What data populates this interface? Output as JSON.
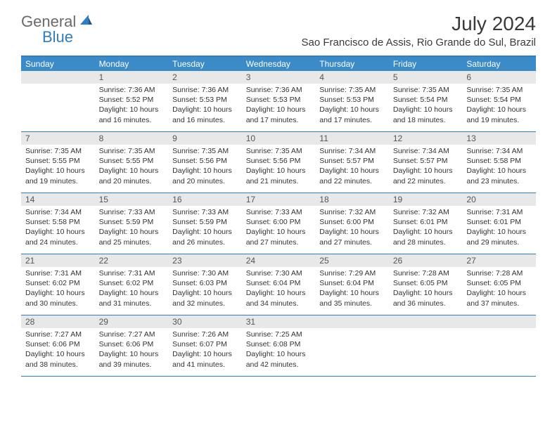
{
  "logo": {
    "text1": "General",
    "text2": "Blue"
  },
  "header": {
    "title": "July 2024",
    "location": "Sao Francisco de Assis, Rio Grande do Sul, Brazil"
  },
  "colors": {
    "header_bar": "#3b8bc9",
    "border": "#2f7ec0",
    "daynum_bg": "#e8e8e8",
    "logo_gray": "#6a6a6a",
    "logo_blue": "#2f7ec0"
  },
  "weekdays": [
    "Sunday",
    "Monday",
    "Tuesday",
    "Wednesday",
    "Thursday",
    "Friday",
    "Saturday"
  ],
  "weeks": [
    [
      {
        "n": "",
        "sr": "",
        "ss": "",
        "dl": ""
      },
      {
        "n": "1",
        "sr": "Sunrise: 7:36 AM",
        "ss": "Sunset: 5:52 PM",
        "dl": "Daylight: 10 hours and 16 minutes."
      },
      {
        "n": "2",
        "sr": "Sunrise: 7:36 AM",
        "ss": "Sunset: 5:53 PM",
        "dl": "Daylight: 10 hours and 16 minutes."
      },
      {
        "n": "3",
        "sr": "Sunrise: 7:36 AM",
        "ss": "Sunset: 5:53 PM",
        "dl": "Daylight: 10 hours and 17 minutes."
      },
      {
        "n": "4",
        "sr": "Sunrise: 7:35 AM",
        "ss": "Sunset: 5:53 PM",
        "dl": "Daylight: 10 hours and 17 minutes."
      },
      {
        "n": "5",
        "sr": "Sunrise: 7:35 AM",
        "ss": "Sunset: 5:54 PM",
        "dl": "Daylight: 10 hours and 18 minutes."
      },
      {
        "n": "6",
        "sr": "Sunrise: 7:35 AM",
        "ss": "Sunset: 5:54 PM",
        "dl": "Daylight: 10 hours and 19 minutes."
      }
    ],
    [
      {
        "n": "7",
        "sr": "Sunrise: 7:35 AM",
        "ss": "Sunset: 5:55 PM",
        "dl": "Daylight: 10 hours and 19 minutes."
      },
      {
        "n": "8",
        "sr": "Sunrise: 7:35 AM",
        "ss": "Sunset: 5:55 PM",
        "dl": "Daylight: 10 hours and 20 minutes."
      },
      {
        "n": "9",
        "sr": "Sunrise: 7:35 AM",
        "ss": "Sunset: 5:56 PM",
        "dl": "Daylight: 10 hours and 20 minutes."
      },
      {
        "n": "10",
        "sr": "Sunrise: 7:35 AM",
        "ss": "Sunset: 5:56 PM",
        "dl": "Daylight: 10 hours and 21 minutes."
      },
      {
        "n": "11",
        "sr": "Sunrise: 7:34 AM",
        "ss": "Sunset: 5:57 PM",
        "dl": "Daylight: 10 hours and 22 minutes."
      },
      {
        "n": "12",
        "sr": "Sunrise: 7:34 AM",
        "ss": "Sunset: 5:57 PM",
        "dl": "Daylight: 10 hours and 22 minutes."
      },
      {
        "n": "13",
        "sr": "Sunrise: 7:34 AM",
        "ss": "Sunset: 5:58 PM",
        "dl": "Daylight: 10 hours and 23 minutes."
      }
    ],
    [
      {
        "n": "14",
        "sr": "Sunrise: 7:34 AM",
        "ss": "Sunset: 5:58 PM",
        "dl": "Daylight: 10 hours and 24 minutes."
      },
      {
        "n": "15",
        "sr": "Sunrise: 7:33 AM",
        "ss": "Sunset: 5:59 PM",
        "dl": "Daylight: 10 hours and 25 minutes."
      },
      {
        "n": "16",
        "sr": "Sunrise: 7:33 AM",
        "ss": "Sunset: 5:59 PM",
        "dl": "Daylight: 10 hours and 26 minutes."
      },
      {
        "n": "17",
        "sr": "Sunrise: 7:33 AM",
        "ss": "Sunset: 6:00 PM",
        "dl": "Daylight: 10 hours and 27 minutes."
      },
      {
        "n": "18",
        "sr": "Sunrise: 7:32 AM",
        "ss": "Sunset: 6:00 PM",
        "dl": "Daylight: 10 hours and 27 minutes."
      },
      {
        "n": "19",
        "sr": "Sunrise: 7:32 AM",
        "ss": "Sunset: 6:01 PM",
        "dl": "Daylight: 10 hours and 28 minutes."
      },
      {
        "n": "20",
        "sr": "Sunrise: 7:31 AM",
        "ss": "Sunset: 6:01 PM",
        "dl": "Daylight: 10 hours and 29 minutes."
      }
    ],
    [
      {
        "n": "21",
        "sr": "Sunrise: 7:31 AM",
        "ss": "Sunset: 6:02 PM",
        "dl": "Daylight: 10 hours and 30 minutes."
      },
      {
        "n": "22",
        "sr": "Sunrise: 7:31 AM",
        "ss": "Sunset: 6:02 PM",
        "dl": "Daylight: 10 hours and 31 minutes."
      },
      {
        "n": "23",
        "sr": "Sunrise: 7:30 AM",
        "ss": "Sunset: 6:03 PM",
        "dl": "Daylight: 10 hours and 32 minutes."
      },
      {
        "n": "24",
        "sr": "Sunrise: 7:30 AM",
        "ss": "Sunset: 6:04 PM",
        "dl": "Daylight: 10 hours and 34 minutes."
      },
      {
        "n": "25",
        "sr": "Sunrise: 7:29 AM",
        "ss": "Sunset: 6:04 PM",
        "dl": "Daylight: 10 hours and 35 minutes."
      },
      {
        "n": "26",
        "sr": "Sunrise: 7:28 AM",
        "ss": "Sunset: 6:05 PM",
        "dl": "Daylight: 10 hours and 36 minutes."
      },
      {
        "n": "27",
        "sr": "Sunrise: 7:28 AM",
        "ss": "Sunset: 6:05 PM",
        "dl": "Daylight: 10 hours and 37 minutes."
      }
    ],
    [
      {
        "n": "28",
        "sr": "Sunrise: 7:27 AM",
        "ss": "Sunset: 6:06 PM",
        "dl": "Daylight: 10 hours and 38 minutes."
      },
      {
        "n": "29",
        "sr": "Sunrise: 7:27 AM",
        "ss": "Sunset: 6:06 PM",
        "dl": "Daylight: 10 hours and 39 minutes."
      },
      {
        "n": "30",
        "sr": "Sunrise: 7:26 AM",
        "ss": "Sunset: 6:07 PM",
        "dl": "Daylight: 10 hours and 41 minutes."
      },
      {
        "n": "31",
        "sr": "Sunrise: 7:25 AM",
        "ss": "Sunset: 6:08 PM",
        "dl": "Daylight: 10 hours and 42 minutes."
      },
      {
        "n": "",
        "sr": "",
        "ss": "",
        "dl": ""
      },
      {
        "n": "",
        "sr": "",
        "ss": "",
        "dl": ""
      },
      {
        "n": "",
        "sr": "",
        "ss": "",
        "dl": ""
      }
    ]
  ]
}
